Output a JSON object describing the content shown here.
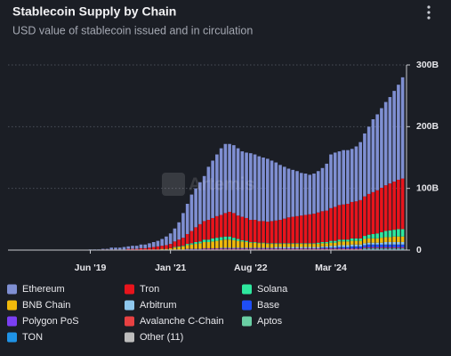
{
  "chart_data": {
    "type": "stacked_bar",
    "title": "Stablecoin Supply by Chain",
    "subtitle": "USD value of stablecoin issued and in circulation",
    "watermark": "Artemis",
    "legend": "bottom",
    "grid": true,
    "ylim": [
      0,
      300
    ],
    "yticks": [
      0,
      {
        "value": 100,
        "label": "100B"
      },
      {
        "value": 200,
        "label": "200B"
      },
      {
        "value": 300,
        "label": "300B"
      }
    ],
    "categories": [
      null,
      null,
      null,
      null,
      null,
      null,
      null,
      null,
      null,
      null,
      null,
      null,
      null,
      null,
      null,
      null,
      null,
      null,
      null,
      "Jun '19",
      null,
      null,
      null,
      null,
      null,
      null,
      null,
      null,
      null,
      null,
      null,
      null,
      null,
      null,
      null,
      null,
      null,
      null,
      "Jan '21",
      null,
      null,
      null,
      null,
      null,
      null,
      null,
      null,
      null,
      null,
      null,
      null,
      null,
      null,
      null,
      null,
      null,
      null,
      "Aug '22",
      null,
      null,
      null,
      null,
      null,
      null,
      null,
      null,
      null,
      null,
      null,
      null,
      null,
      null,
      null,
      null,
      null,
      null,
      "Mar '24",
      null,
      null,
      null,
      null,
      null,
      null,
      null,
      null,
      null,
      null,
      null,
      null,
      null,
      null,
      null,
      null,
      null
    ],
    "series": [
      {
        "name": "Ethereum",
        "color": "#7f8fd2",
        "values": [
          0,
          0,
          0,
          0,
          0,
          0,
          0,
          0,
          0,
          0,
          0,
          0,
          0,
          0,
          0,
          0,
          0,
          0,
          0,
          1,
          1,
          1,
          1,
          1,
          3,
          3,
          3,
          4,
          4,
          5,
          5,
          6,
          6,
          7,
          8,
          9,
          11,
          14,
          17,
          21,
          28,
          40,
          49,
          59,
          63,
          68,
          73,
          86,
          93,
          100,
          108,
          112,
          110,
          110,
          109,
          106,
          106,
          108,
          106,
          105,
          103,
          102,
          98,
          94,
          89,
          84,
          79,
          76,
          73,
          69,
          67,
          64,
          65,
          67,
          70,
          76,
          87,
          88,
          87,
          88,
          87,
          86,
          89,
          94,
          102,
          109,
          118,
          123,
          129,
          135,
          140,
          147,
          154,
          164
        ]
      },
      {
        "name": "Tron",
        "color": "#e8141c",
        "values": [
          0,
          0,
          0,
          0,
          0,
          0,
          0,
          0,
          0,
          0,
          0,
          0,
          0,
          0,
          0,
          0,
          0,
          0,
          0,
          0,
          0,
          0,
          1,
          1,
          1,
          1,
          1,
          1,
          2,
          2,
          2,
          3,
          3,
          4,
          4,
          5,
          5,
          6,
          7,
          9,
          11,
          13,
          16,
          20,
          24,
          28,
          30,
          32,
          33,
          35,
          36,
          38,
          40,
          40,
          38,
          38,
          37,
          36,
          36,
          35,
          35,
          35,
          36,
          37,
          38,
          40,
          42,
          43,
          44,
          45,
          46,
          47,
          48,
          49,
          50,
          51,
          53,
          55,
          56,
          57,
          58,
          59,
          60,
          62,
          64,
          66,
          68,
          70,
          72,
          74,
          76,
          78,
          80,
          82
        ]
      },
      {
        "name": "Solana",
        "color": "#2ee89e",
        "values": [
          0,
          0,
          0,
          0,
          0,
          0,
          0,
          0,
          0,
          0,
          0,
          0,
          0,
          0,
          0,
          0,
          0,
          0,
          0,
          0,
          0,
          0,
          0,
          0,
          0,
          0,
          0,
          0,
          0,
          0,
          0,
          0,
          0,
          0,
          0,
          0,
          0,
          0,
          0,
          1,
          1,
          1,
          2,
          2,
          3,
          3,
          4,
          4,
          5,
          5,
          5,
          5,
          5,
          4,
          3,
          2,
          2,
          1,
          1,
          1,
          1,
          1,
          1,
          1,
          1,
          1,
          1,
          1,
          1,
          1,
          1,
          1,
          1,
          2,
          2,
          2,
          3,
          3,
          3,
          3,
          3,
          4,
          4,
          4,
          5,
          6,
          7,
          8,
          9,
          10,
          11,
          11,
          12,
          12
        ]
      },
      {
        "name": "BNB Chain",
        "color": "#f0b90b",
        "values": [
          0,
          0,
          0,
          0,
          0,
          0,
          0,
          0,
          0,
          0,
          0,
          0,
          0,
          0,
          0,
          0,
          0,
          0,
          0,
          0,
          0,
          0,
          0,
          0,
          0,
          0,
          0,
          0,
          0,
          0,
          0,
          0,
          0,
          0,
          1,
          1,
          1,
          1,
          2,
          3,
          4,
          5,
          6,
          7,
          8,
          9,
          10,
          10,
          11,
          12,
          12,
          13,
          13,
          12,
          11,
          10,
          9,
          8,
          8,
          7,
          7,
          6,
          6,
          5,
          5,
          5,
          5,
          5,
          5,
          5,
          5,
          5,
          5,
          5,
          5,
          5,
          5,
          5,
          6,
          6,
          6,
          6,
          6,
          6,
          7,
          7,
          7,
          7,
          8,
          8,
          8,
          9,
          9,
          9
        ]
      },
      {
        "name": "Arbitrum",
        "color": "#8fc8ee",
        "values": [
          0,
          0,
          0,
          0,
          0,
          0,
          0,
          0,
          0,
          0,
          0,
          0,
          0,
          0,
          0,
          0,
          0,
          0,
          0,
          0,
          0,
          0,
          0,
          0,
          0,
          0,
          0,
          0,
          0,
          0,
          0,
          0,
          0,
          0,
          0,
          0,
          0,
          0,
          0,
          0,
          0,
          0,
          0,
          0,
          0,
          0,
          0,
          0,
          0,
          0,
          1,
          1,
          1,
          1,
          1,
          1,
          1,
          1,
          1,
          1,
          1,
          1,
          1,
          2,
          2,
          2,
          2,
          2,
          2,
          2,
          2,
          2,
          2,
          2,
          2,
          2,
          3,
          3,
          3,
          3,
          3,
          3,
          3,
          3,
          3,
          3,
          3,
          3,
          3,
          4,
          4,
          4,
          4,
          4
        ]
      },
      {
        "name": "Base",
        "color": "#1f4ef5",
        "values": [
          0,
          0,
          0,
          0,
          0,
          0,
          0,
          0,
          0,
          0,
          0,
          0,
          0,
          0,
          0,
          0,
          0,
          0,
          0,
          0,
          0,
          0,
          0,
          0,
          0,
          0,
          0,
          0,
          0,
          0,
          0,
          0,
          0,
          0,
          0,
          0,
          0,
          0,
          0,
          0,
          0,
          0,
          0,
          0,
          0,
          0,
          0,
          0,
          0,
          0,
          0,
          0,
          0,
          0,
          0,
          0,
          0,
          0,
          0,
          0,
          0,
          0,
          0,
          0,
          0,
          0,
          0,
          0,
          0,
          0,
          0,
          0,
          0,
          0,
          1,
          1,
          1,
          1,
          2,
          2,
          2,
          3,
          3,
          3,
          3,
          4,
          4,
          4,
          4,
          4,
          4,
          4,
          4,
          4
        ]
      },
      {
        "name": "Polygon PoS",
        "color": "#7b3ff2",
        "values": [
          0,
          0,
          0,
          0,
          0,
          0,
          0,
          0,
          0,
          0,
          0,
          0,
          0,
          0,
          0,
          0,
          0,
          0,
          0,
          0,
          0,
          0,
          0,
          0,
          0,
          0,
          0,
          0,
          0,
          0,
          0,
          0,
          0,
          0,
          0,
          0,
          0,
          0,
          0,
          0,
          0,
          0,
          1,
          1,
          1,
          1,
          1,
          1,
          1,
          1,
          1,
          1,
          1,
          1,
          1,
          1,
          1,
          1,
          1,
          1,
          1,
          1,
          1,
          1,
          1,
          1,
          1,
          1,
          1,
          1,
          1,
          1,
          1,
          1,
          1,
          1,
          1,
          1,
          1,
          1,
          1,
          1,
          1,
          1,
          1,
          1,
          1,
          1,
          1,
          1,
          1,
          1,
          1,
          1
        ]
      },
      {
        "name": "Avalanche C-Chain",
        "color": "#e84142",
        "values": [
          0,
          0,
          0,
          0,
          0,
          0,
          0,
          0,
          0,
          0,
          0,
          0,
          0,
          0,
          0,
          0,
          0,
          0,
          0,
          0,
          0,
          0,
          0,
          0,
          0,
          0,
          0,
          0,
          0,
          0,
          0,
          0,
          0,
          0,
          0,
          0,
          0,
          0,
          0,
          0,
          0,
          0,
          0,
          0,
          0,
          0,
          1,
          1,
          1,
          1,
          1,
          1,
          1,
          1,
          1,
          1,
          1,
          1,
          1,
          1,
          1,
          1,
          1,
          1,
          1,
          1,
          1,
          1,
          1,
          1,
          1,
          1,
          1,
          1,
          1,
          1,
          1,
          1,
          1,
          1,
          1,
          1,
          1,
          1,
          1,
          1,
          1,
          1,
          1,
          1,
          1,
          1,
          1,
          1
        ]
      },
      {
        "name": "Aptos",
        "color": "#6acfa4",
        "values": [
          0,
          0,
          0,
          0,
          0,
          0,
          0,
          0,
          0,
          0,
          0,
          0,
          0,
          0,
          0,
          0,
          0,
          0,
          0,
          0,
          0,
          0,
          0,
          0,
          0,
          0,
          0,
          0,
          0,
          0,
          0,
          0,
          0,
          0,
          0,
          0,
          0,
          0,
          0,
          0,
          0,
          0,
          0,
          0,
          0,
          0,
          0,
          0,
          0,
          0,
          0,
          0,
          0,
          0,
          0,
          0,
          0,
          0,
          0,
          0,
          0,
          0,
          0,
          0,
          0,
          0,
          0,
          0,
          0,
          0,
          0,
          0,
          0,
          0,
          0,
          0,
          0,
          0,
          0,
          0,
          0,
          0,
          0,
          0,
          1,
          1,
          1,
          1,
          1,
          1,
          1,
          1,
          1,
          1
        ]
      },
      {
        "name": "TON",
        "color": "#1f93e6",
        "values": [
          0,
          0,
          0,
          0,
          0,
          0,
          0,
          0,
          0,
          0,
          0,
          0,
          0,
          0,
          0,
          0,
          0,
          0,
          0,
          0,
          0,
          0,
          0,
          0,
          0,
          0,
          0,
          0,
          0,
          0,
          0,
          0,
          0,
          0,
          0,
          0,
          0,
          0,
          0,
          0,
          0,
          0,
          0,
          0,
          0,
          0,
          0,
          0,
          0,
          0,
          0,
          0,
          0,
          0,
          0,
          0,
          0,
          0,
          0,
          0,
          0,
          0,
          0,
          0,
          0,
          0,
          0,
          0,
          0,
          0,
          0,
          0,
          0,
          0,
          0,
          0,
          0,
          0,
          0,
          0,
          0,
          0,
          0,
          0,
          1,
          1,
          1,
          1,
          1,
          1,
          1,
          1,
          1,
          1
        ]
      },
      {
        "name": "Other (11)",
        "color": "#bdbdbd",
        "values": [
          0,
          0,
          0,
          0,
          0,
          0,
          0,
          0,
          0,
          0,
          0,
          0,
          0,
          0,
          0,
          0,
          0,
          0,
          0,
          0,
          0,
          0,
          0,
          0,
          0,
          0,
          0,
          0,
          0,
          0,
          0,
          0,
          0,
          0,
          0,
          0,
          1,
          1,
          1,
          1,
          1,
          1,
          1,
          1,
          1,
          1,
          1,
          1,
          1,
          1,
          1,
          1,
          1,
          1,
          1,
          1,
          1,
          1,
          1,
          1,
          1,
          1,
          1,
          1,
          1,
          1,
          1,
          1,
          1,
          1,
          1,
          1,
          1,
          1,
          1,
          1,
          1,
          1,
          1,
          1,
          1,
          1,
          1,
          1,
          1,
          1,
          1,
          1,
          1,
          1,
          1,
          1,
          1,
          1
        ]
      }
    ]
  }
}
